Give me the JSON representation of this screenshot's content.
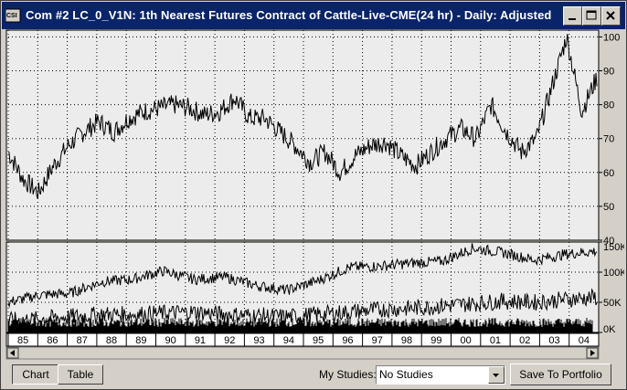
{
  "window": {
    "title": "Com #2 LC_0_V1N: 1th Nearest Futures Contract of Cattle-Live-CME(24 hr) - Daily: Adjusted",
    "app_icon_text": "CSI"
  },
  "chart_data": [
    {
      "type": "line",
      "panel": "price",
      "y_ticks": [
        "100",
        "90",
        "80",
        "70",
        "60",
        "50",
        "40"
      ],
      "ylim": [
        40,
        102
      ],
      "x_ticks": [
        "85",
        "86",
        "87",
        "88",
        "89",
        "90",
        "91",
        "92",
        "93",
        "94",
        "95",
        "96",
        "97",
        "98",
        "99",
        "00",
        "01",
        "02",
        "03",
        "04"
      ],
      "grid": true,
      "series": [
        {
          "x": [
            "85",
            "85.5",
            "86",
            "86.5",
            "87",
            "87.5",
            "88",
            "88.5",
            "89",
            "89.5",
            "90",
            "90.5",
            "91",
            "91.5",
            "92",
            "92.5",
            "93",
            "93.5",
            "94",
            "94.5",
            "95",
            "95.5",
            "96",
            "96.5",
            "97",
            "97.5",
            "98",
            "98.5",
            "99",
            "99.5",
            "00",
            "00.5",
            "01",
            "01.5",
            "02",
            "02.5",
            "03",
            "03.5",
            "04",
            "04.5"
          ],
          "values": [
            66,
            58,
            54,
            62,
            68,
            72,
            75,
            72,
            76,
            78,
            79,
            80,
            79,
            77,
            78,
            82,
            76,
            76,
            72,
            68,
            63,
            66,
            60,
            65,
            68,
            69,
            65,
            62,
            66,
            70,
            73,
            70,
            80,
            72,
            66,
            70,
            85,
            100,
            78,
            88
          ]
        }
      ]
    },
    {
      "type": "line",
      "panel": "volume_open_interest",
      "y_ticks": [
        "150K",
        "100K",
        "50K",
        "0K"
      ],
      "ylim": [
        0,
        150000
      ],
      "grid": true,
      "series": [
        {
          "x": [
            "85",
            "86",
            "87",
            "88",
            "89",
            "90",
            "91",
            "92",
            "93",
            "94",
            "95",
            "96",
            "97",
            "98",
            "99",
            "00",
            "01",
            "02",
            "03",
            "04"
          ],
          "values": [
            50000,
            62000,
            65000,
            84000,
            88000,
            102000,
            88000,
            92000,
            78000,
            70000,
            86000,
            108000,
            110000,
            115000,
            118000,
            140000,
            132000,
            120000,
            130000,
            135000
          ]
        },
        {
          "x": [
            "85",
            "86",
            "87",
            "88",
            "89",
            "90",
            "91",
            "92",
            "93",
            "94",
            "95",
            "96",
            "97",
            "98",
            "99",
            "00",
            "01",
            "02",
            "03",
            "04"
          ],
          "values": [
            20000,
            22000,
            26000,
            30000,
            30000,
            32000,
            34000,
            30000,
            28000,
            26000,
            30000,
            34000,
            38000,
            40000,
            44000,
            48000,
            52000,
            50000,
            55000,
            58000
          ]
        }
      ]
    }
  ],
  "bottom": {
    "tab_chart": "Chart",
    "tab_table": "Table",
    "studies_label": "My Studies:",
    "studies_value": "No Studies",
    "save_button": "Save To Portfolio"
  }
}
